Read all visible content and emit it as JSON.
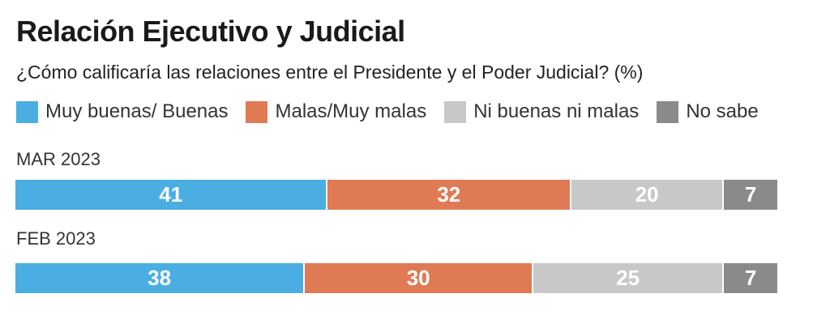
{
  "title": "Relación Ejecutivo y Judicial",
  "subtitle": "¿Cómo calificaría las relaciones entre el Presidente y el Poder Judicial? (%)",
  "colors": {
    "muy_buenas": "#4aaee3",
    "malas": "#e07a55",
    "ni_buenas": "#c8c8c8",
    "no_sabe": "#8a8a8a"
  },
  "legend": [
    {
      "label": "Muy buenas/ Buenas",
      "color": "#4aaee3"
    },
    {
      "label": "Malas/Muy malas",
      "color": "#e07a55"
    },
    {
      "label": "Ni buenas ni malas",
      "color": "#c8c8c8"
    },
    {
      "label": "No sabe",
      "color": "#8a8a8a"
    }
  ],
  "chart_data": {
    "type": "bar",
    "orientation": "horizontal",
    "stacked": true,
    "title": "Relación Ejecutivo y Judicial",
    "subtitle": "¿Cómo calificaría las relaciones entre el Presidente y el Poder Judicial? (%)",
    "categories": [
      "MAR 2023",
      "FEB 2023"
    ],
    "series": [
      {
        "name": "Muy buenas/ Buenas",
        "values": [
          41,
          38
        ],
        "color": "#4aaee3"
      },
      {
        "name": "Malas/Muy malas",
        "values": [
          32,
          30
        ],
        "color": "#e07a55"
      },
      {
        "name": "Ni buenas ni malas",
        "values": [
          20,
          25
        ],
        "color": "#c8c8c8"
      },
      {
        "name": "No sabe",
        "values": [
          7,
          7
        ],
        "color": "#8a8a8a"
      }
    ],
    "legend_position": "top",
    "grid": false
  }
}
